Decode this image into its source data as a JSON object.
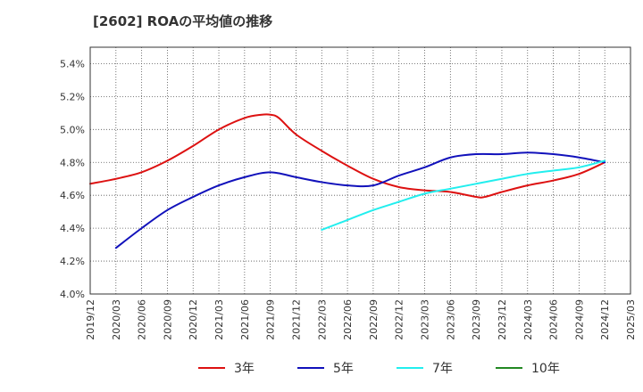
{
  "chart_data": {
    "type": "line",
    "title": "[2602]  ROAの平均値の推移",
    "xlabel": "",
    "ylabel": "",
    "ylim": [
      4.0,
      5.5
    ],
    "y_ticks": [
      "4.0%",
      "4.2%",
      "4.4%",
      "4.6%",
      "4.8%",
      "5.0%",
      "5.2%",
      "5.4%"
    ],
    "y_tick_values": [
      4.0,
      4.2,
      4.4,
      4.6,
      4.8,
      5.0,
      5.2,
      5.4
    ],
    "x_ticks": [
      "2019/12",
      "2020/03",
      "2020/06",
      "2020/09",
      "2020/12",
      "2021/03",
      "2021/06",
      "2021/09",
      "2021/12",
      "2022/03",
      "2022/06",
      "2022/09",
      "2022/12",
      "2023/03",
      "2023/06",
      "2023/09",
      "2023/12",
      "2024/03",
      "2024/06",
      "2024/09",
      "2024/12",
      "2025/03"
    ],
    "grid": true,
    "grid_style": "dotted",
    "legend_position": "bottom",
    "series": [
      {
        "name": "3年",
        "color": "#dd1111",
        "x": [
          "2019/12",
          "2020/03",
          "2020/06",
          "2020/09",
          "2020/12",
          "2021/03",
          "2021/06",
          "2021/08",
          "2021/09",
          "2021/10",
          "2021/12",
          "2022/03",
          "2022/06",
          "2022/09",
          "2022/12",
          "2023/03",
          "2023/06",
          "2023/09",
          "2023/10",
          "2023/12",
          "2024/03",
          "2024/06",
          "2024/09",
          "2024/12"
        ],
        "values": [
          4.67,
          4.7,
          4.74,
          4.81,
          4.9,
          5.0,
          5.07,
          5.09,
          5.09,
          5.07,
          4.97,
          4.87,
          4.78,
          4.7,
          4.65,
          4.63,
          4.62,
          4.59,
          4.59,
          4.62,
          4.66,
          4.69,
          4.73,
          4.8
        ]
      },
      {
        "name": "5年",
        "color": "#1111bb",
        "x": [
          "2020/03",
          "2020/06",
          "2020/09",
          "2020/12",
          "2021/03",
          "2021/06",
          "2021/09",
          "2021/12",
          "2022/03",
          "2022/06",
          "2022/09",
          "2022/12",
          "2023/03",
          "2023/06",
          "2023/09",
          "2023/12",
          "2024/03",
          "2024/06",
          "2024/09",
          "2024/12"
        ],
        "values": [
          4.28,
          4.4,
          4.51,
          4.59,
          4.66,
          4.71,
          4.74,
          4.71,
          4.68,
          4.66,
          4.66,
          4.72,
          4.77,
          4.83,
          4.85,
          4.85,
          4.86,
          4.85,
          4.83,
          4.8
        ]
      },
      {
        "name": "7年",
        "color": "#22eeee",
        "x": [
          "2022/03",
          "2022/06",
          "2022/09",
          "2022/12",
          "2023/03",
          "2023/06",
          "2023/09",
          "2023/12",
          "2024/03",
          "2024/06",
          "2024/09",
          "2024/12"
        ],
        "values": [
          4.39,
          4.45,
          4.51,
          4.56,
          4.61,
          4.64,
          4.67,
          4.7,
          4.73,
          4.75,
          4.77,
          4.81
        ]
      },
      {
        "name": "10年",
        "color": "#228822",
        "x": [],
        "values": []
      }
    ]
  }
}
